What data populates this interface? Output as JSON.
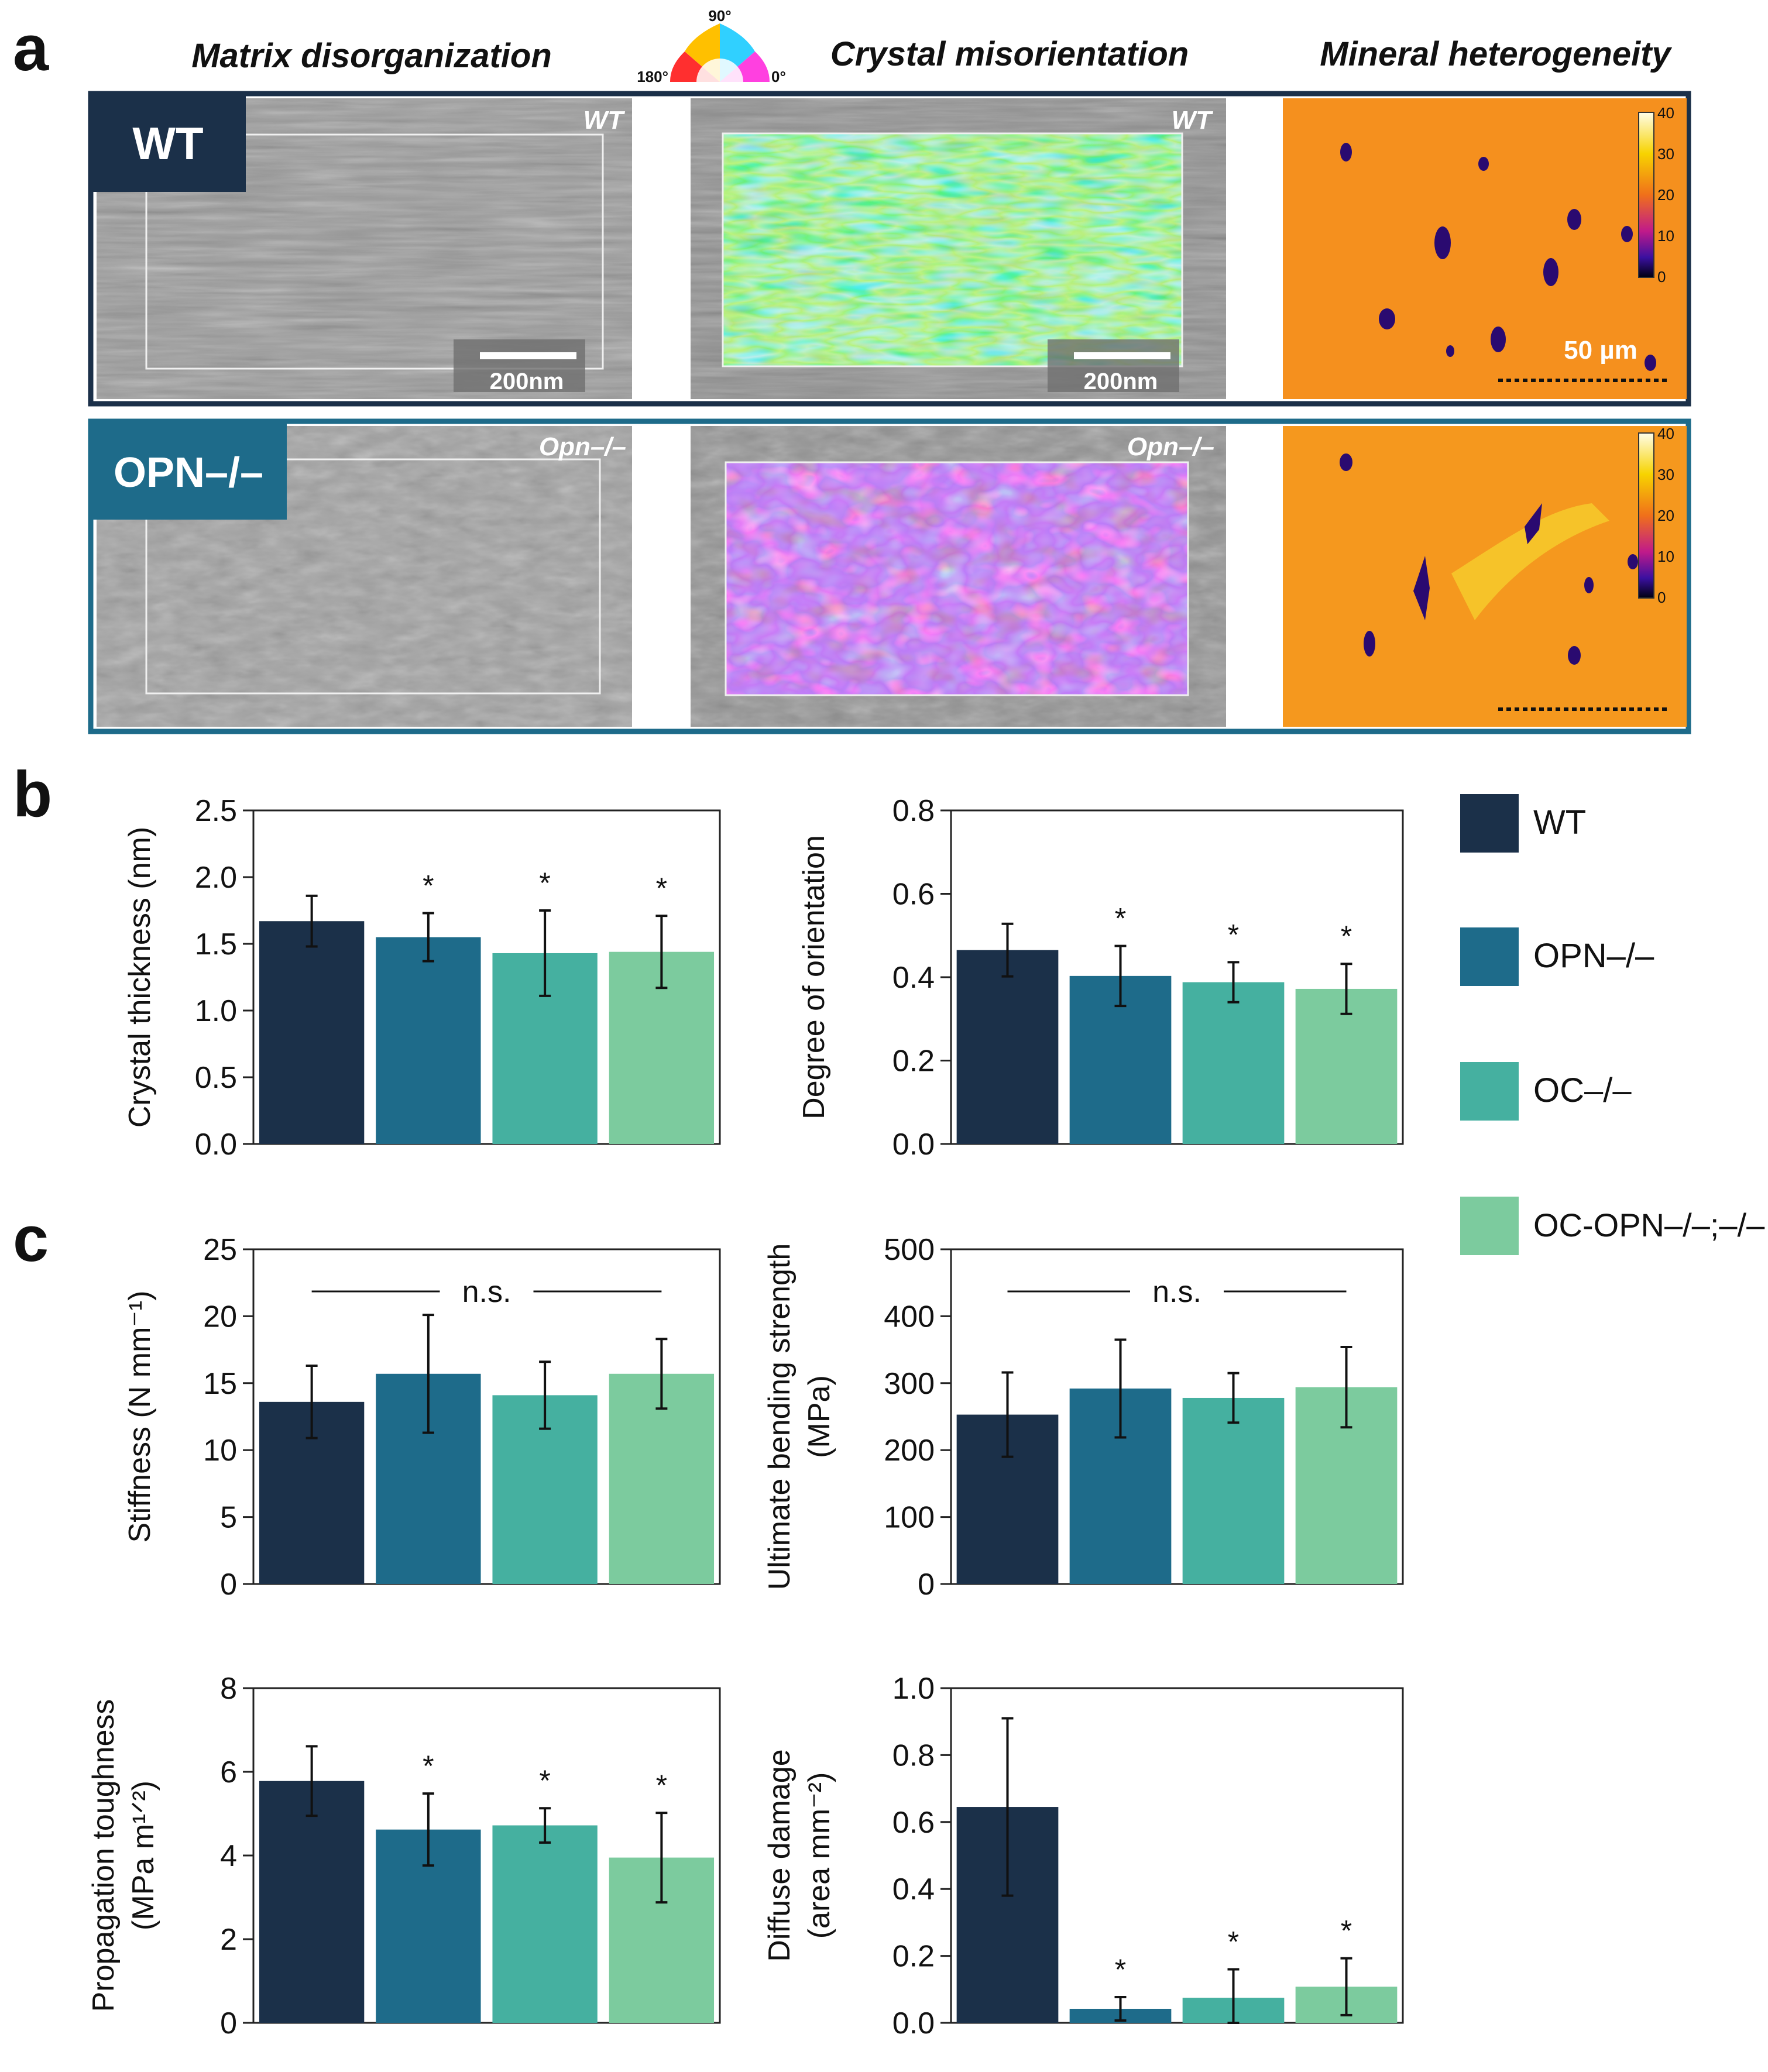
{
  "panels": {
    "a": {
      "letter": "a",
      "column_titles": [
        "Matrix disorganization",
        "Crystal misorientation",
        "Mineral heterogeneity"
      ],
      "orientation_key": {
        "top": "90°",
        "left": "180°",
        "right": "0°"
      },
      "rows": [
        {
          "label": "WT",
          "image_tag": "WT",
          "scale_bar": "200nm",
          "scale_bar_2": "200nm",
          "mineral_scale": "50 µm"
        },
        {
          "label": "OPN–/–",
          "image_tag": "Opn–/–"
        }
      ],
      "colorbar_ticks": [
        "40",
        "30",
        "20",
        "10",
        "0"
      ]
    },
    "b": {
      "letter": "b"
    },
    "c": {
      "letter": "c"
    }
  },
  "legend": [
    {
      "label": "WT",
      "color": "#1b3049"
    },
    {
      "label": "OPN–/–",
      "color": "#1e6b8a"
    },
    {
      "label": "OC–/–",
      "color": "#45b0a0"
    },
    {
      "label": "OC-OPN–/–;–/–",
      "color": "#7ccb9e"
    }
  ],
  "chart_data": [
    {
      "type": "bar",
      "panel": "b",
      "categories": [
        "WT",
        "OPN–/–",
        "OC–/–",
        "OC-OPN–/–;–/–"
      ],
      "values": [
        1.67,
        1.55,
        1.43,
        1.44
      ],
      "errors": [
        0.19,
        0.18,
        0.32,
        0.27
      ],
      "significance": [
        "",
        "*",
        "*",
        "*"
      ],
      "ylabel": "Crystal thickness (nm)",
      "ylim": [
        0,
        2.5
      ],
      "yticks": [
        "0.0",
        "0.5",
        "1.0",
        "1.5",
        "2.0",
        "2.5"
      ],
      "bracket": ""
    },
    {
      "type": "bar",
      "panel": "b",
      "categories": [
        "WT",
        "OPN–/–",
        "OC–/–",
        "OC-OPN–/–;–/–"
      ],
      "values": [
        0.465,
        0.403,
        0.388,
        0.372
      ],
      "errors": [
        0.063,
        0.072,
        0.048,
        0.06
      ],
      "significance": [
        "",
        "*",
        "*",
        "*"
      ],
      "ylabel": "Degree of orientation",
      "ylim": [
        0,
        0.8
      ],
      "yticks": [
        "0.0",
        "0.2",
        "0.4",
        "0.6",
        "0.8"
      ],
      "bracket": ""
    },
    {
      "type": "bar",
      "panel": "c",
      "categories": [
        "WT",
        "OPN–/–",
        "OC–/–",
        "OC-OPN–/–;–/–"
      ],
      "values": [
        13.6,
        15.7,
        14.1,
        15.7
      ],
      "errors": [
        2.7,
        4.4,
        2.5,
        2.6
      ],
      "significance": [
        "",
        "",
        "",
        ""
      ],
      "ylabel": "Stiffness (N mm⁻¹)",
      "ylim": [
        0,
        25
      ],
      "yticks": [
        "0",
        "5",
        "10",
        "15",
        "20",
        "25"
      ],
      "bracket": "n.s."
    },
    {
      "type": "bar",
      "panel": "c",
      "categories": [
        "WT",
        "OPN–/–",
        "OC–/–",
        "OC-OPN–/–;–/–"
      ],
      "values": [
        253,
        292,
        278,
        294
      ],
      "errors": [
        63,
        73,
        37,
        60
      ],
      "significance": [
        "",
        "",
        "",
        ""
      ],
      "ylabel": "Ultimate bending strength (MPa)",
      "ylim": [
        0,
        500
      ],
      "yticks": [
        "0",
        "100",
        "200",
        "300",
        "400",
        "500"
      ],
      "bracket": "n.s."
    },
    {
      "type": "bar",
      "panel": "c",
      "categories": [
        "WT",
        "OPN–/–",
        "OC–/–",
        "OC-OPN–/–;–/–"
      ],
      "values": [
        5.78,
        4.62,
        4.72,
        3.95
      ],
      "errors": [
        0.83,
        0.86,
        0.41,
        1.07
      ],
      "significance": [
        "",
        "*",
        "*",
        "*"
      ],
      "ylabel": "Propagation toughness (MPa m¹ᐟ²)",
      "ylim": [
        0,
        8
      ],
      "yticks": [
        "0",
        "2",
        "4",
        "6",
        "8"
      ],
      "bracket": ""
    },
    {
      "type": "bar",
      "panel": "c",
      "categories": [
        "WT",
        "OPN–/–",
        "OC–/–",
        "OC-OPN–/–;–/–"
      ],
      "values": [
        0.645,
        0.042,
        0.075,
        0.108
      ],
      "errors": [
        0.265,
        0.035,
        0.085,
        0.085
      ],
      "significance": [
        "",
        "*",
        "*",
        "*"
      ],
      "ylabel": "Diffuse damage (area mm⁻²)",
      "ylim": [
        0,
        1.0
      ],
      "yticks": [
        "0.0",
        "0.2",
        "0.4",
        "0.6",
        "0.8",
        "1.0"
      ],
      "bracket": ""
    }
  ]
}
